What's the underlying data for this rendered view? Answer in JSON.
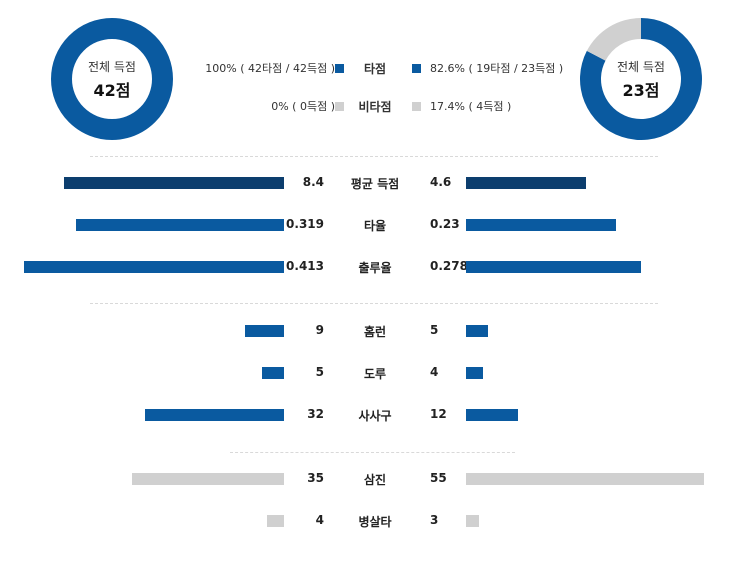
{
  "colors": {
    "hit": "#0a5aa0",
    "nonhit": "#d0d0d0",
    "avg": "#0c3e6e"
  },
  "team_left": {
    "total_label": "전체 득점",
    "total_value": "42점"
  },
  "team_right": {
    "total_label": "전체 득점",
    "total_value": "23점"
  },
  "legend": [
    {
      "category": "타점",
      "left_text": "100% ( 42타점 / 42득점 )",
      "right_text": "82.6% ( 19타점 / 23득점 )"
    },
    {
      "category": "비타점",
      "left_text": "0% ( 0득점 )",
      "right_text": "17.4% ( 4득점 )"
    }
  ],
  "stats": [
    {
      "name": "평균 득점",
      "left_label": "8.4",
      "right_label": "4.6"
    },
    {
      "name": "타율",
      "left_label": "0.319",
      "right_label": "0.23"
    },
    {
      "name": "출루율",
      "left_label": "0.413",
      "right_label": "0.278"
    },
    {
      "name": "홈런",
      "left_label": "9",
      "right_label": "5"
    },
    {
      "name": "도루",
      "left_label": "5",
      "right_label": "4"
    },
    {
      "name": "사사구",
      "left_label": "32",
      "right_label": "12"
    },
    {
      "name": "삼진",
      "left_label": "35",
      "right_label": "55"
    },
    {
      "name": "병살타",
      "left_label": "4",
      "right_label": "3"
    }
  ],
  "chart_data": [
    {
      "type": "pie",
      "title": "전체 득점 42점",
      "categories": [
        "타점",
        "비타점"
      ],
      "values": [
        42,
        0
      ],
      "percent": [
        100,
        0
      ]
    },
    {
      "type": "pie",
      "title": "전체 득점 23점",
      "categories": [
        "타점",
        "비타점"
      ],
      "values": [
        19,
        4
      ],
      "percent": [
        82.6,
        17.4
      ]
    },
    {
      "type": "bar",
      "categories": [
        "평균 득점",
        "타율",
        "출루율",
        "홈런",
        "도루",
        "사사구",
        "삼진",
        "병살타"
      ],
      "series": [
        {
          "values": [
            8.4,
            0.319,
            0.413,
            9,
            5,
            32,
            35,
            4
          ]
        },
        {
          "values": [
            4.6,
            0.23,
            0.278,
            5,
            4,
            12,
            55,
            3
          ]
        }
      ]
    }
  ]
}
